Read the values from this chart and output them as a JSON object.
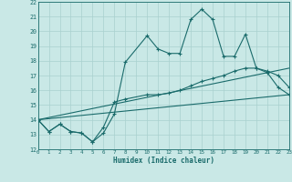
{
  "xlabel": "Humidex (Indice chaleur)",
  "xlim": [
    0,
    23
  ],
  "ylim": [
    12,
    22
  ],
  "xticks": [
    0,
    1,
    2,
    3,
    4,
    5,
    6,
    7,
    8,
    9,
    10,
    11,
    12,
    13,
    14,
    15,
    16,
    17,
    18,
    19,
    20,
    21,
    22,
    23
  ],
  "yticks": [
    12,
    13,
    14,
    15,
    16,
    17,
    18,
    19,
    20,
    21,
    22
  ],
  "bg_color": "#c9e8e6",
  "line_color": "#1a6b6b",
  "grid_color": "#a8d0ce",
  "series1_x": [
    0,
    1,
    2,
    3,
    4,
    5,
    6,
    7,
    8,
    10,
    11,
    12,
    13,
    14,
    15,
    16,
    17,
    18,
    19,
    20,
    21,
    22,
    23
  ],
  "series1_y": [
    14,
    13.2,
    13.7,
    13.2,
    13.1,
    12.5,
    13.1,
    14.4,
    17.9,
    19.7,
    18.8,
    18.5,
    18.5,
    20.8,
    21.5,
    20.8,
    18.3,
    18.3,
    19.8,
    17.5,
    17.2,
    16.2,
    15.7
  ],
  "series2_x": [
    0,
    1,
    2,
    3,
    4,
    5,
    6,
    7,
    8,
    10,
    11,
    12,
    13,
    14,
    15,
    16,
    17,
    18,
    19,
    20,
    21,
    22,
    23
  ],
  "series2_y": [
    14,
    13.2,
    13.7,
    13.2,
    13.1,
    12.5,
    13.5,
    15.2,
    15.4,
    15.7,
    15.7,
    15.8,
    16.0,
    16.3,
    16.6,
    16.8,
    17.0,
    17.3,
    17.5,
    17.5,
    17.3,
    17.0,
    16.2
  ],
  "series3_x": [
    0,
    23
  ],
  "series3_y": [
    14.0,
    15.7
  ],
  "series4_x": [
    0,
    23
  ],
  "series4_y": [
    14.0,
    17.5
  ]
}
